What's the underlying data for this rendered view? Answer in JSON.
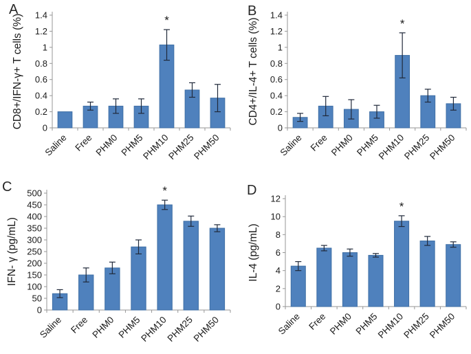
{
  "figure": {
    "background": "#ffffff",
    "bar_color": "#4F81BD",
    "bar_border_color": "#3F6FA5",
    "error_bar_color": "#20293A",
    "axis_color": "#969696",
    "text_color": "#1A1A1A",
    "sig_marker": "*"
  },
  "chart_data": [
    {
      "type": "bar",
      "panel_label": "A",
      "ylabel": "CD8+/IFN-γ+ T cells (%)",
      "xlabel": "",
      "categories": [
        "Saline",
        "Free",
        "PHM0",
        "PHM5",
        "PHM10",
        "PHM25",
        "PHM50"
      ],
      "values": [
        0.2,
        0.27,
        0.27,
        0.27,
        1.03,
        0.47,
        0.37
      ],
      "errors": [
        0,
        0.05,
        0.09,
        0.09,
        0.19,
        0.09,
        0.17
      ],
      "ylim": [
        0,
        1.4
      ],
      "yticks": [
        0,
        0.2,
        0.4,
        0.6,
        0.8,
        1,
        1.2,
        1.4
      ],
      "ytick_labels": [
        "0",
        "0.2",
        "0.4",
        "0.6",
        "0.8",
        "1",
        "1.2",
        "1.4"
      ],
      "significant_index": 4,
      "sig_label": "*",
      "grid": false,
      "legend": false
    },
    {
      "type": "bar",
      "panel_label": "B",
      "ylabel": "CD4+/IL-4+ T cells (%)",
      "xlabel": "",
      "categories": [
        "Saline",
        "Free",
        "PHM0",
        "PHM5",
        "PHM10",
        "PHM25",
        "PHM50"
      ],
      "values": [
        0.13,
        0.27,
        0.23,
        0.2,
        0.9,
        0.4,
        0.3
      ],
      "errors": [
        0.05,
        0.12,
        0.12,
        0.08,
        0.28,
        0.08,
        0.08
      ],
      "ylim": [
        0,
        1.4
      ],
      "yticks": [
        0,
        0.2,
        0.4,
        0.6,
        0.8,
        1,
        1.2,
        1.4
      ],
      "ytick_labels": [
        "0",
        "0.2",
        "0.4",
        "0.6",
        "0.8",
        "1",
        "1.2",
        "1.4"
      ],
      "significant_index": 4,
      "sig_label": "*",
      "grid": false,
      "legend": false
    },
    {
      "type": "bar",
      "panel_label": "C",
      "ylabel": "IFN- γ  (pg/mL)",
      "xlabel": "",
      "categories": [
        "Saline",
        "Free",
        "PHM0",
        "PHM5",
        "PHM10",
        "PHM25",
        "PHM50"
      ],
      "values": [
        70,
        150,
        180,
        270,
        450,
        380,
        350
      ],
      "errors": [
        17,
        30,
        25,
        30,
        20,
        22,
        15
      ],
      "ylim": [
        0,
        500
      ],
      "yticks": [
        0,
        50,
        100,
        150,
        200,
        250,
        300,
        350,
        400,
        450,
        500
      ],
      "ytick_labels": [
        "0",
        "50",
        "100",
        "150",
        "200",
        "250",
        "300",
        "350",
        "400",
        "450",
        "500"
      ],
      "significant_index": 4,
      "sig_label": "*",
      "grid": false,
      "legend": false
    },
    {
      "type": "bar",
      "panel_label": "D",
      "ylabel": "IL-4 (pg/mL)",
      "xlabel": "",
      "categories": [
        "Saline",
        "Free",
        "PHM0",
        "PHM5",
        "PHM10",
        "PHM25",
        "PHM50"
      ],
      "values": [
        4.5,
        6.5,
        6.0,
        5.7,
        9.5,
        7.3,
        6.9
      ],
      "errors": [
        0.5,
        0.3,
        0.4,
        0.2,
        0.6,
        0.5,
        0.3
      ],
      "ylim": [
        0,
        12
      ],
      "yticks": [
        0,
        2,
        4,
        6,
        8,
        10,
        12
      ],
      "ytick_labels": [
        "0",
        "2",
        "4",
        "6",
        "8",
        "10",
        "12"
      ],
      "significant_index": 4,
      "sig_label": "*",
      "grid": false,
      "legend": false
    }
  ]
}
